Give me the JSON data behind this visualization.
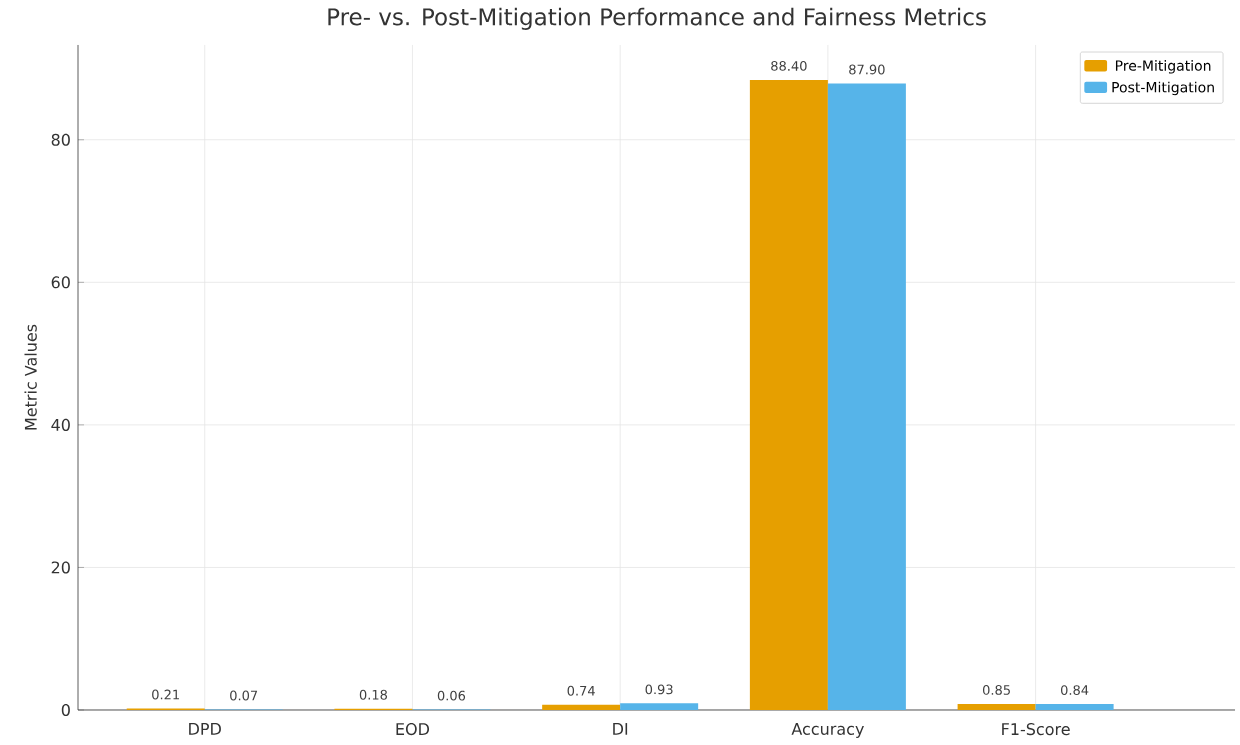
{
  "chart_data": {
    "type": "bar",
    "title": "Pre- vs. Post-Mitigation Performance and Fairness Metrics",
    "ylabel": "Metric Values",
    "categories": [
      "DPD",
      "EOD",
      "DI",
      "Accuracy",
      "F1-Score"
    ],
    "series": [
      {
        "name": "Pre-Mitigation",
        "color": "#e69f00",
        "values": [
          0.21,
          0.18,
          0.74,
          88.4,
          0.85
        ],
        "value_labels": [
          "0.21",
          "0.18",
          "0.74",
          "88.40",
          "0.85"
        ]
      },
      {
        "name": "Post-Mitigation",
        "color": "#56b4e9",
        "values": [
          0.07,
          0.06,
          0.93,
          87.9,
          0.84
        ],
        "value_labels": [
          "0.07",
          "0.06",
          "0.93",
          "87.90",
          "0.84"
        ]
      }
    ],
    "ylim": [
      0,
      93.3
    ],
    "yticks": [
      0,
      20,
      40,
      60,
      80
    ],
    "grid": true,
    "legend": "top right"
  }
}
